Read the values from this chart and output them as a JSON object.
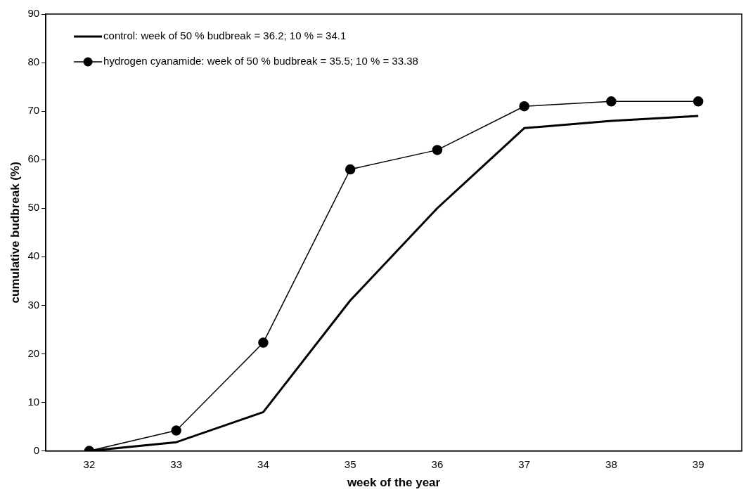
{
  "chart_data": {
    "type": "line",
    "xlabel": "week of the year",
    "ylabel": "cumulative budbreak (%)",
    "categories": [
      "32",
      "33",
      "34",
      "35",
      "36",
      "37",
      "38",
      "39"
    ],
    "ylim": [
      0,
      90
    ],
    "yticks": [
      0,
      10,
      20,
      30,
      40,
      50,
      60,
      70,
      80,
      90
    ],
    "grid": false,
    "legend": "top left",
    "series": [
      {
        "name": "control: week of 50 % budbreak = 36.2; 10 % = 34.1",
        "color": "#000000",
        "marker": "none",
        "values": [
          0,
          1.8,
          8,
          31,
          50,
          66.5,
          68,
          69
        ]
      },
      {
        "name": "hydrogen cyanamide: week of 50 % budbreak = 35.5; 10 % = 33.38",
        "color": "#000000",
        "marker": "circle",
        "values": [
          0,
          4.2,
          22.3,
          58,
          62,
          71,
          72,
          72
        ]
      }
    ]
  }
}
